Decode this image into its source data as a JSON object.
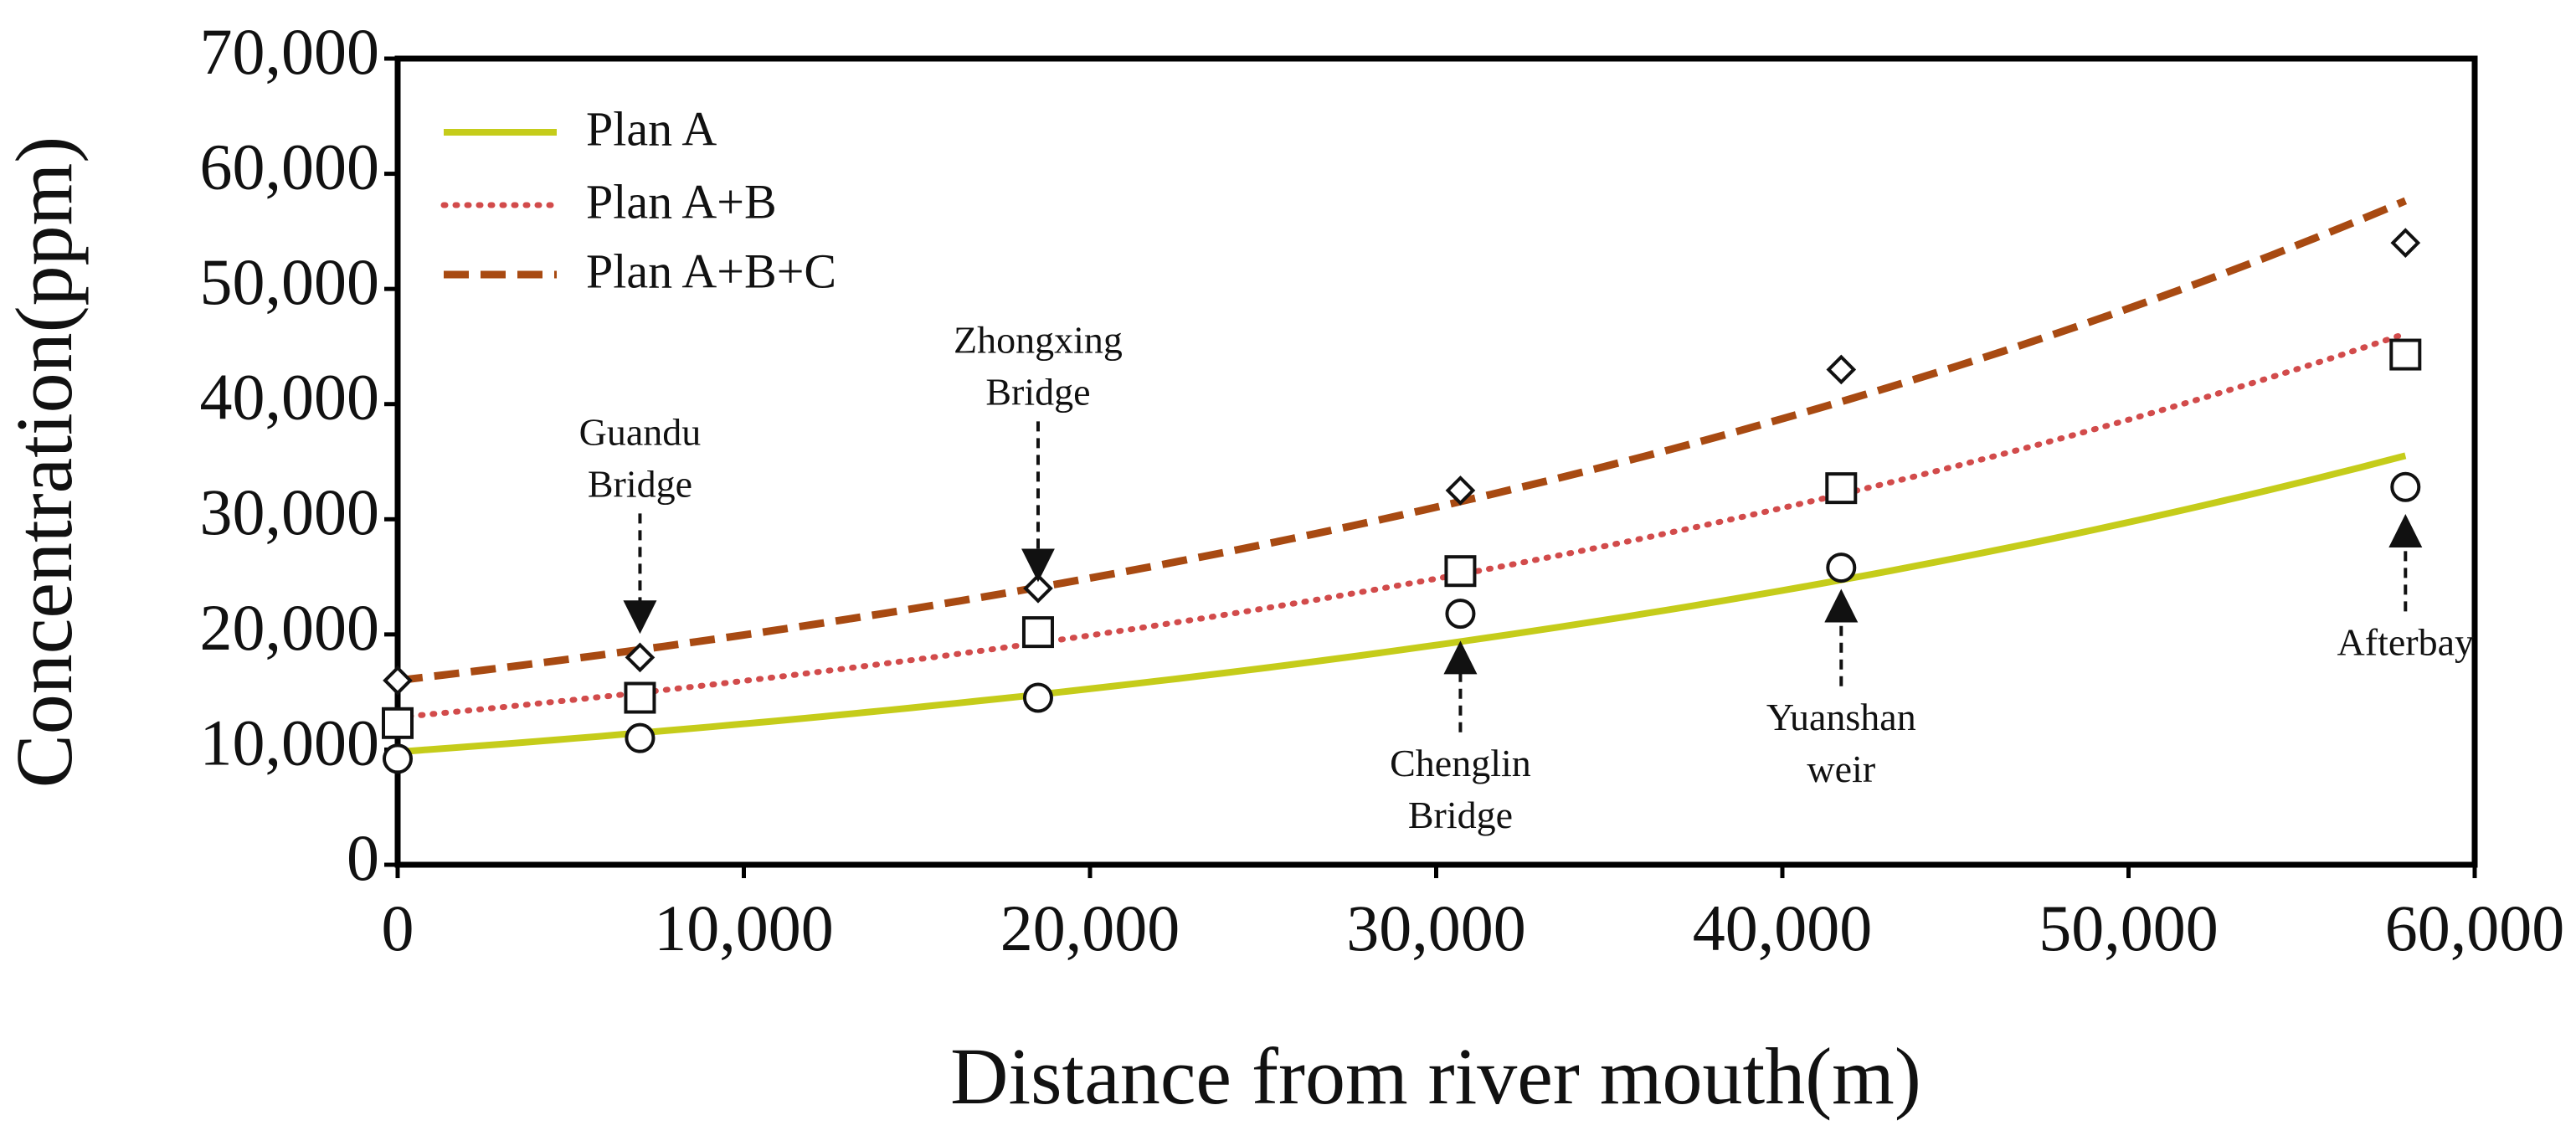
{
  "chart_data": {
    "type": "scatter",
    "title": "",
    "xlabel": "Distance from river mouth(m)",
    "ylabel": "Concentration(ppm)",
    "xlim": [
      0,
      60000
    ],
    "ylim": [
      0,
      70000
    ],
    "x_ticks": [
      0,
      10000,
      20000,
      30000,
      40000,
      50000,
      60000
    ],
    "x_tick_labels": [
      "0",
      "10,000",
      "20,000",
      "30,000",
      "40,000",
      "50,000",
      "60,000"
    ],
    "y_ticks": [
      0,
      10000,
      20000,
      30000,
      40000,
      50000,
      60000,
      70000
    ],
    "y_tick_labels": [
      "0",
      "10,000",
      "20,000",
      "30,000",
      "40,000",
      "50,000",
      "60,000",
      "70,000"
    ],
    "grid": false,
    "legend_position": "top-left",
    "series": [
      {
        "name": "Plan A",
        "line_style": "solid",
        "color": "#c5cc1a",
        "marker": "circle",
        "points_x": [
          0,
          7000,
          18500,
          30700,
          41700,
          58000
        ],
        "points_y": [
          9200,
          11000,
          14500,
          21800,
          25800,
          32800
        ],
        "fit": {
          "a": 9800,
          "b": 2.22e-05
        }
      },
      {
        "name": "Plan A+B",
        "line_style": "dotted",
        "color": "#d24b4b",
        "marker": "square",
        "points_x": [
          0,
          7000,
          18500,
          30700,
          41700,
          58000
        ],
        "points_y": [
          12300,
          14500,
          20200,
          25500,
          32700,
          44300
        ],
        "fit": {
          "a": 12800,
          "b": 2.21e-05
        }
      },
      {
        "name": "Plan A+B+C",
        "line_style": "dashed",
        "color": "#a84a12",
        "marker": "diamond",
        "points_x": [
          0,
          7000,
          18500,
          30700,
          41700,
          58000
        ],
        "points_y": [
          16000,
          18000,
          24000,
          32500,
          43000,
          54000
        ],
        "fit": {
          "a": 16000,
          "b": 2.21e-05
        }
      }
    ],
    "annotations": [
      {
        "lines": [
          "Guandu",
          "Bridge"
        ],
        "x": 7000,
        "arrow_from": 30500,
        "arrow_to": 21500,
        "direction": "down"
      },
      {
        "lines": [
          "Zhongxing",
          "Bridge"
        ],
        "x": 18500,
        "arrow_from": 38500,
        "arrow_to": 26000,
        "direction": "down"
      },
      {
        "lines": [
          "Chenglin",
          "Bridge"
        ],
        "x": 30700,
        "arrow_from": 11500,
        "arrow_to": 18000,
        "direction": "up"
      },
      {
        "lines": [
          "Yuanshan",
          "weir"
        ],
        "x": 41700,
        "arrow_from": 15500,
        "arrow_to": 22500,
        "direction": "up"
      },
      {
        "lines": [
          "Afterbay"
        ],
        "x": 58000,
        "arrow_from": 22000,
        "arrow_to": 29000,
        "direction": "up"
      }
    ]
  }
}
